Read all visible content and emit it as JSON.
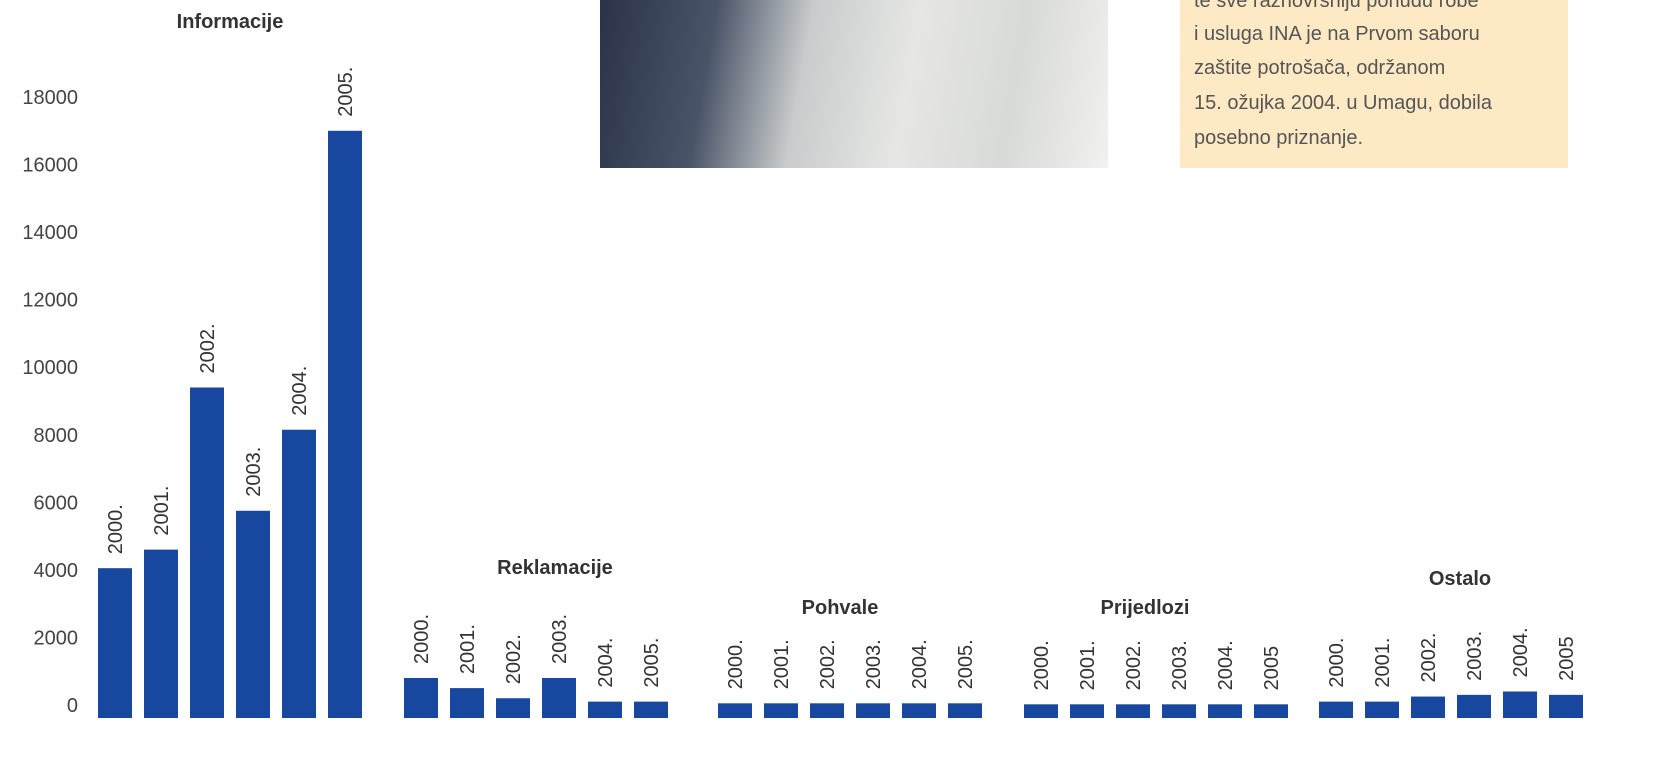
{
  "chart_data": {
    "type": "bar",
    "color": "#17479e",
    "ylim": [
      0,
      18000
    ],
    "yticks": [
      0,
      2000,
      4000,
      6000,
      8000,
      10000,
      12000,
      14000,
      16000,
      18000
    ],
    "groups": [
      {
        "title": "Informacije",
        "categories": [
          "2000.",
          "2001.",
          "2002.",
          "2003.",
          "2004.",
          "2005."
        ],
        "values": [
          4050,
          4600,
          9400,
          5750,
          8150,
          17000
        ]
      },
      {
        "title": "Reklamacije",
        "categories": [
          "2000.",
          "2001.",
          "2002.",
          "2003.",
          "2004.",
          "2005."
        ],
        "values": [
          800,
          500,
          200,
          800,
          100,
          100
        ]
      },
      {
        "title": "Pohvale",
        "categories": [
          "2000.",
          "2001.",
          "2002.",
          "2003.",
          "2004.",
          "2005."
        ],
        "values": [
          50,
          50,
          50,
          50,
          50,
          50
        ]
      },
      {
        "title": "Prijedlozi",
        "categories": [
          "2000.",
          "2001.",
          "2002.",
          "2003.",
          "2004.",
          "2005"
        ],
        "values": [
          20,
          20,
          20,
          20,
          20,
          20
        ]
      },
      {
        "title": "Ostalo",
        "categories": [
          "2000.",
          "2001.",
          "2002.",
          "2003.",
          "2004.",
          "2005"
        ],
        "values": [
          100,
          100,
          250,
          300,
          400,
          300
        ]
      }
    ]
  },
  "note": {
    "lines": [
      "te sve raznovrsniju ponudu robe",
      "i usluga INA je na Prvom saboru",
      "zaštite potrošača, održanom",
      "15. ožujka 2004. u Umagu, dobila",
      "posebno priznanje."
    ]
  }
}
